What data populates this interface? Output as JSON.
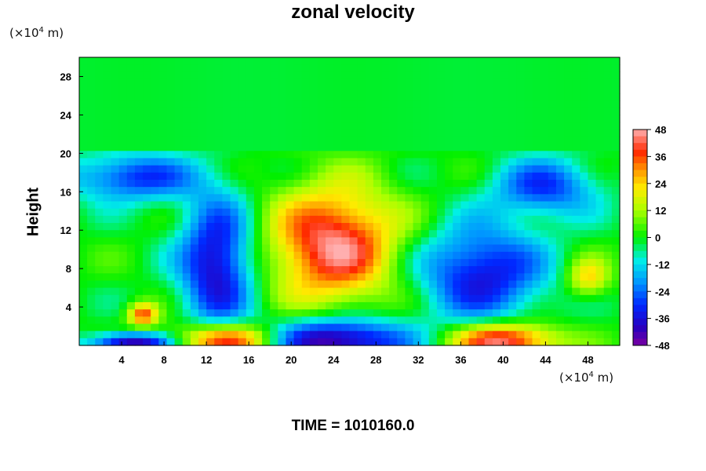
{
  "chart_data": {
    "type": "heatmap",
    "title": "zonal velocity",
    "xlabel": "",
    "ylabel": "Height",
    "x_unit": {
      "base": "(×10",
      "exponent": "4",
      "suffix": " m)"
    },
    "y_unit": {
      "base": "(×10",
      "exponent": "4",
      "suffix": " m)"
    },
    "xlim": [
      0,
      51
    ],
    "ylim": [
      0,
      30
    ],
    "x_ticks": [
      4,
      8,
      12,
      16,
      20,
      24,
      28,
      32,
      36,
      40,
      44,
      48
    ],
    "y_ticks": [
      4,
      8,
      12,
      16,
      20,
      24,
      28
    ],
    "colorbar": {
      "min": -48,
      "max": 48,
      "ticks": [
        48,
        36,
        24,
        12,
        0,
        -12,
        -24,
        -36,
        -48
      ]
    },
    "field_description": "Contour-filled zonal velocity; near-uniform ~0 above height 20, strong positive core near x=24, y=10, negative bands near x=14, y=10 and x=38, y=8, surface extremes near y=0.",
    "features": [
      {
        "type": "background",
        "value": 0
      },
      {
        "type": "blob",
        "x": 24,
        "y": 10.5,
        "rx": 6,
        "ry": 6,
        "value": 46
      },
      {
        "type": "blob",
        "x": 13,
        "y": 8.5,
        "rx": 3.5,
        "ry": 7,
        "value": -40
      },
      {
        "type": "blob",
        "x": 38,
        "y": 7.5,
        "rx": 6,
        "ry": 5,
        "value": -36
      },
      {
        "type": "blob",
        "x": 5,
        "y": 17.5,
        "rx": 6,
        "ry": 2.5,
        "value": -30
      },
      {
        "type": "blob",
        "x": 44,
        "y": 16.5,
        "rx": 5,
        "ry": 3,
        "value": -28
      },
      {
        "type": "blob",
        "x": 6,
        "y": 3.2,
        "rx": 1.4,
        "ry": 1.2,
        "value": 36
      },
      {
        "type": "blob",
        "x": 48,
        "y": 7,
        "rx": 2,
        "ry": 2,
        "value": 24
      },
      {
        "type": "blob",
        "x": 14,
        "y": 0.5,
        "rx": 5,
        "ry": 1.8,
        "value": 48
      },
      {
        "type": "blob",
        "x": 24,
        "y": 0.5,
        "rx": 7,
        "ry": 2.3,
        "value": -48
      },
      {
        "type": "blob",
        "x": 40,
        "y": 0.5,
        "rx": 5,
        "ry": 1.8,
        "value": 48
      },
      {
        "type": "blob",
        "x": 5,
        "y": 0.3,
        "rx": 4,
        "ry": 1,
        "value": -44
      }
    ],
    "grid": false,
    "legend": "colorbar-right"
  },
  "footer": {
    "time": "TIME = 1010160.0"
  }
}
